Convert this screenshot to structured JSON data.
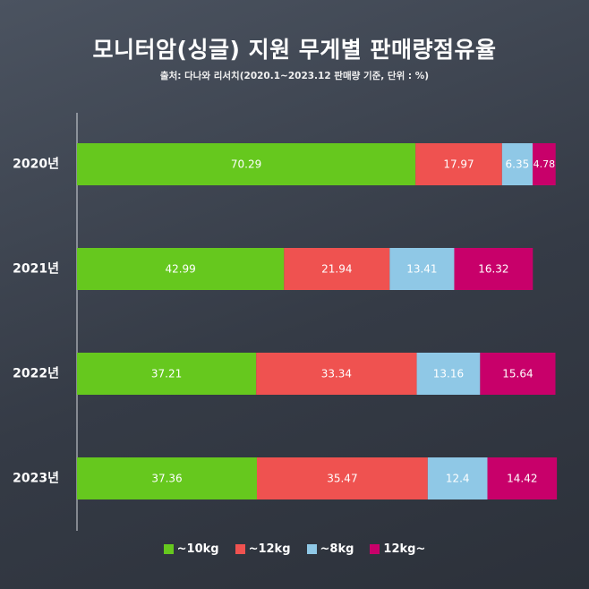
{
  "title": "모니터암(싱글) 지원 무게별 판매량점유율",
  "subtitle": "출처: 다나와 리서치(2020.1~2023.12 판매량 기준, 단위 : %)",
  "chart_data": {
    "type": "bar",
    "orientation": "horizontal",
    "stacked": true,
    "categories": [
      "2020년",
      "2021년",
      "2022년",
      "2023년"
    ],
    "series": [
      {
        "name": "~10kg",
        "color": "#66c81e",
        "values": [
          70.29,
          42.99,
          37.21,
          37.36
        ]
      },
      {
        "name": "~12kg",
        "color": "#ef5250",
        "values": [
          17.97,
          21.94,
          33.34,
          35.47
        ]
      },
      {
        "name": "~8kg",
        "color": "#8fc8e6",
        "values": [
          6.35,
          13.41,
          13.16,
          12.4
        ]
      },
      {
        "name": "12kg~",
        "color": "#c8006a",
        "values": [
          4.78,
          16.32,
          15.64,
          14.42
        ]
      }
    ],
    "xlim": [
      0,
      100
    ],
    "legend_position": "bottom"
  }
}
